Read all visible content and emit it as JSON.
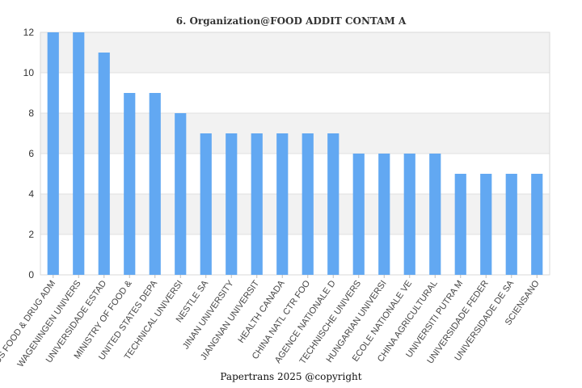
{
  "chart_data": {
    "type": "bar",
    "title": "6. Organization@FOOD ADDIT CONTAM A",
    "footer": "Papertrans 2025 @copyright",
    "categories": [
      "US FOOD & DRUG ADM",
      "WAGENINGEN UNIVERS",
      "UNIVERSIDADE ESTAD",
      "MINISTRY OF FOOD &",
      "UNITED STATES DEPA",
      "TECHNICAL UNIVERSI",
      "NESTLE SA",
      "JINAN UNIVERSITY",
      "JIANGNAN UNIVERSIT",
      "HEALTH CANADA",
      "CHINA NATL CTR FOO",
      "AGENCE NATIONALE D",
      "TECHNISCHE UNIVERS",
      "HUNGARIAN UNIVERSI",
      "ECOLE NATIONALE VE",
      "CHINA AGRICULTURAL",
      "UNIVERSITI PUTRA M",
      "UNIVERSIDADE FEDER",
      "UNIVERSIDADE DE SA",
      "SCIENSANO"
    ],
    "values": [
      12,
      12,
      11,
      9,
      9,
      8,
      7,
      7,
      7,
      7,
      7,
      7,
      6,
      6,
      6,
      6,
      5,
      5,
      5,
      5
    ],
    "ylim": [
      0,
      12
    ],
    "yticks": [
      0,
      2,
      4,
      6,
      8,
      10,
      12
    ],
    "grid": true,
    "bar_color": "#62a8f2",
    "band_color": "#f2f2f2"
  }
}
